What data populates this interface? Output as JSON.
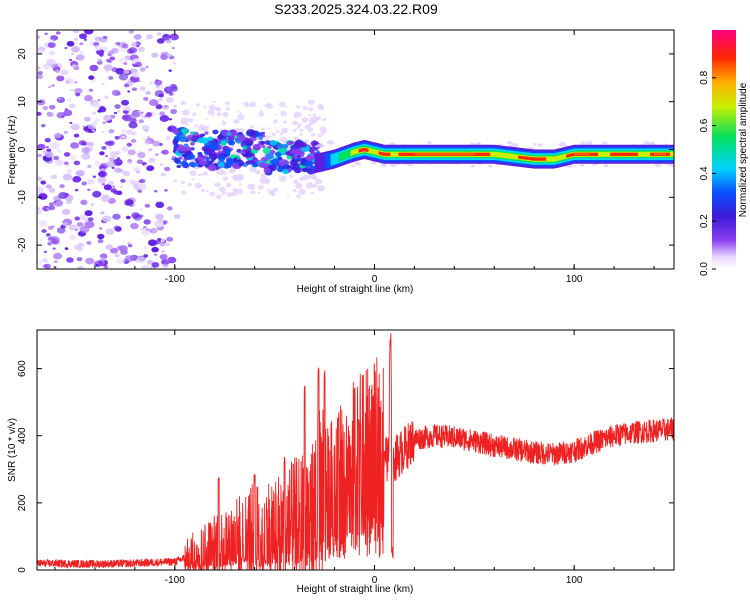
{
  "title": "S233.2025.324.03.22.R09",
  "colors": {
    "snr_line": "#ee2222",
    "spectrogram_scatter": "#8a3ff0",
    "axis": "#000000"
  },
  "chart_data": [
    {
      "type": "heatmap",
      "xlabel": "Height of straight line (km)",
      "ylabel": "Frequency (Hz)",
      "xlim": [
        -169,
        150
      ],
      "ylim": [
        -25,
        25
      ],
      "x_ticks": [
        -100,
        0,
        100
      ],
      "y_ticks": [
        -20,
        -10,
        0,
        10,
        20
      ],
      "colorbar": {
        "label": "Normalized spectral amplitude",
        "range": [
          0,
          1
        ],
        "ticks": [
          "0.0",
          "0.2",
          "0.4",
          "0.6",
          "0.8"
        ],
        "colormap": "rainbow (violet → blue → cyan → green → yellow → red → pink)"
      },
      "ridge": {
        "description": "High-amplitude ridge near 0 Hz from about -20 km to 150 km",
        "x": [
          -30,
          -20,
          -10,
          -5,
          0,
          5,
          10,
          20,
          40,
          60,
          80,
          90,
          100,
          120,
          140,
          150
        ],
        "y": [
          -3,
          -2,
          -0.5,
          0,
          -0.5,
          -1,
          -1,
          -1,
          -1,
          -1,
          -2,
          -2,
          -1,
          -1,
          -1,
          -1
        ]
      },
      "noise_regions": [
        {
          "x_range": [
            -169,
            -100
          ],
          "y_range": [
            -25,
            25
          ],
          "level": "low, diffuse"
        },
        {
          "x_range": [
            -100,
            -30
          ],
          "y_range": [
            -5,
            5
          ],
          "level": "medium, clustered"
        }
      ]
    },
    {
      "type": "line",
      "xlabel": "Height of straight line (km)",
      "ylabel": "SNR (10 * v/v)",
      "xlim": [
        -169,
        150
      ],
      "ylim": [
        0,
        715
      ],
      "x_ticks": [
        -100,
        0,
        100
      ],
      "y_ticks": [
        0,
        200,
        400,
        600
      ],
      "series": [
        {
          "x": [
            -169,
            -140,
            -120,
            -100,
            -95,
            -90,
            -80,
            -70,
            -60,
            -50,
            -40,
            -30,
            -25,
            -20,
            -15,
            -10,
            -5,
            0,
            5,
            7,
            8,
            9,
            10,
            15,
            20,
            30,
            40,
            50,
            60,
            70,
            80,
            90,
            100,
            110,
            120,
            130,
            140,
            150
          ],
          "values": [
            20,
            18,
            20,
            25,
            35,
            50,
            70,
            90,
            110,
            120,
            140,
            170,
            230,
            260,
            290,
            320,
            330,
            350,
            360,
            320,
            715,
            260,
            330,
            360,
            390,
            400,
            395,
            385,
            370,
            360,
            350,
            345,
            355,
            380,
            400,
            410,
            415,
            420
          ]
        }
      ],
      "peaks": {
        "x": [
          -78,
          -60,
          -45,
          -35,
          -28,
          -25,
          -18,
          -8,
          8
        ],
        "values": [
          280,
          290,
          340,
          560,
          620,
          600,
          470,
          460,
          715
        ]
      }
    }
  ]
}
